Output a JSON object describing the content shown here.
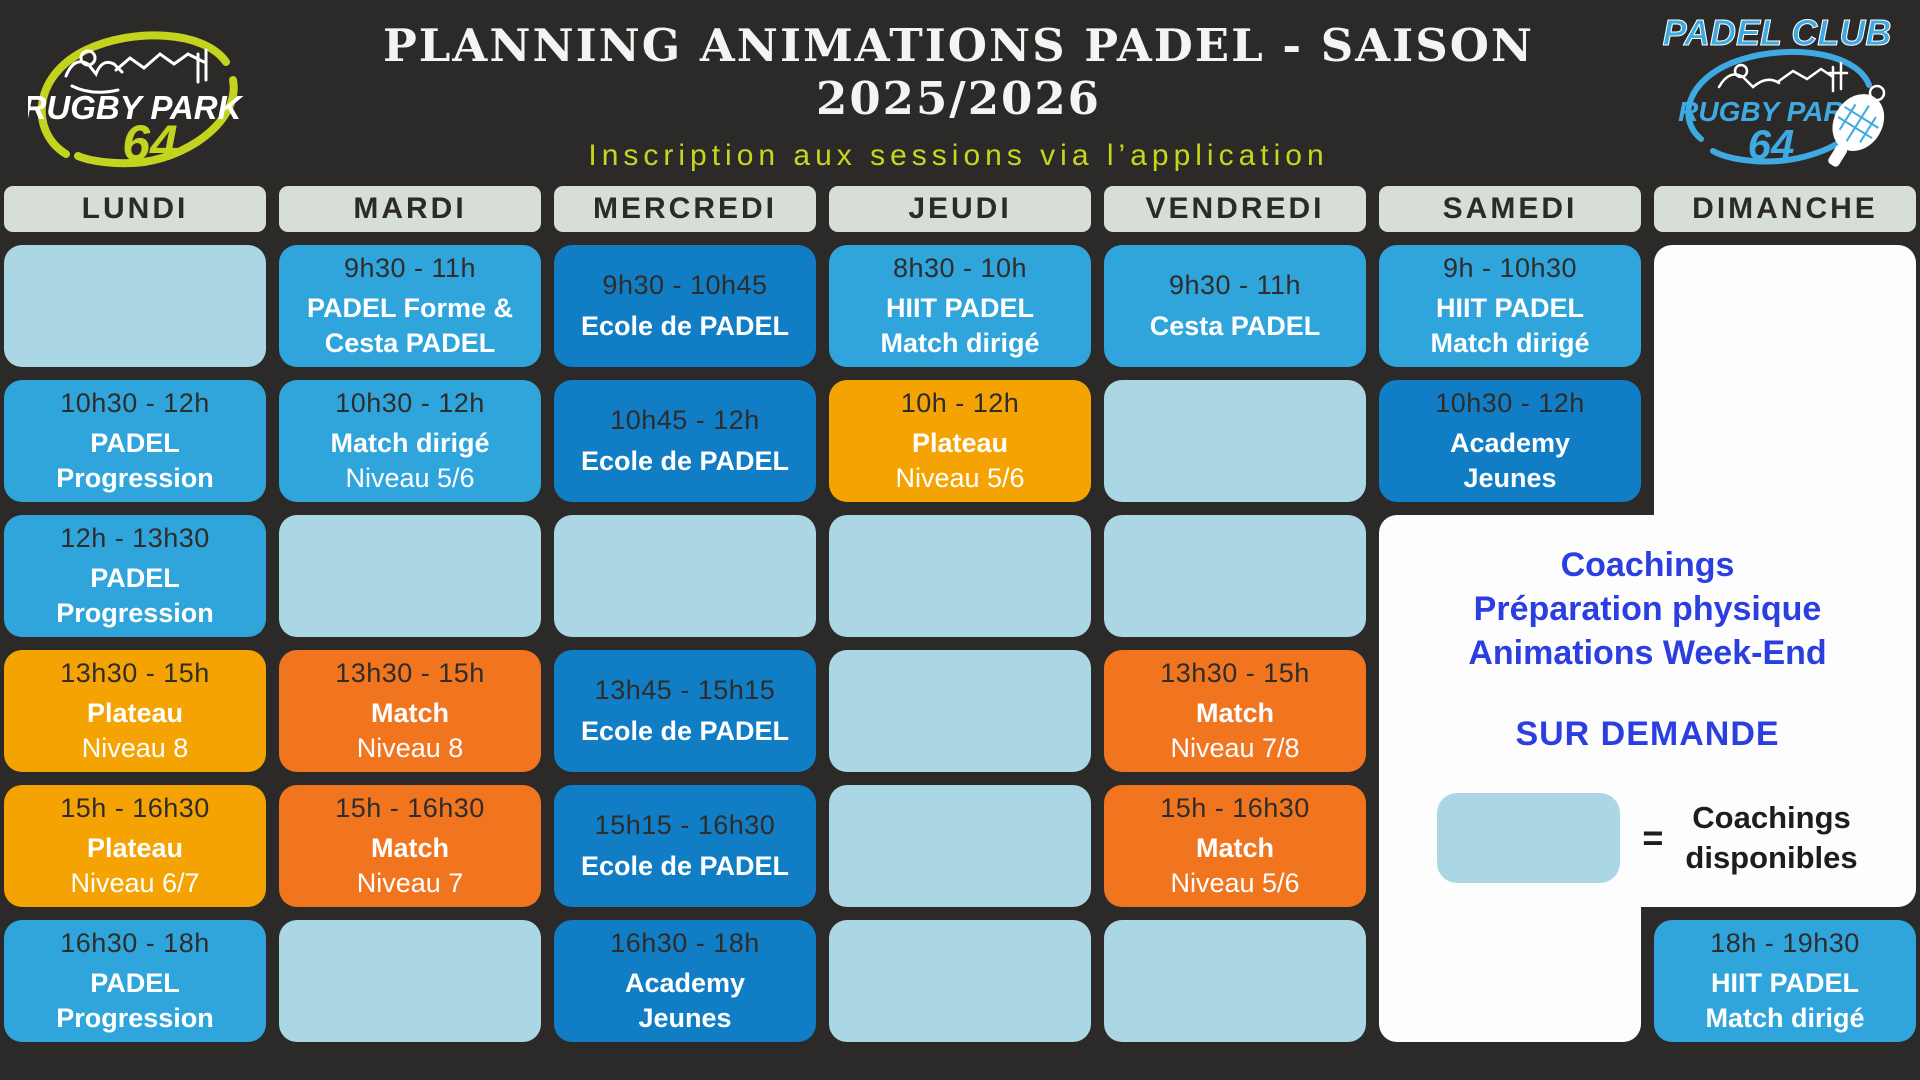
{
  "header": {
    "title": "PLANNING ANIMATIONS PADEL - SAISON 2025/2026",
    "subtitle": "Inscription aux sessions via l’application"
  },
  "logos": {
    "left": {
      "name": "RUGBY PARK",
      "number": "64"
    },
    "right": {
      "club": "PADEL CLUB",
      "name": "RUGBY PARK",
      "number": "64"
    }
  },
  "weekend_panel": {
    "line1": "Coachings",
    "line2": "Préparation physique",
    "line3": "Animations Week-End",
    "line4": "SUR DEMANDE"
  },
  "legend": {
    "equals": "=",
    "label_line1": "Coachings",
    "label_line2": "disponibles"
  },
  "colors": {
    "background": "#2b2a28",
    "day_header_bg": "#d7ded7",
    "coaching_blue": "#abd7e4",
    "session_blue": "#2fa5dc",
    "school_blue": "#107dc5",
    "plateau_orange": "#f5a302",
    "match_orange": "#f1741f",
    "panel_text_blue": "#2b3fe0",
    "accent_green": "#c9d41f",
    "logo_blue": "#3fa9e1"
  },
  "schedule": {
    "days": [
      {
        "label": "LUNDI",
        "slots": [
          {
            "type": "coaching"
          },
          {
            "type": "session",
            "time": "10h30 - 12h",
            "lines": [
              {
                "text": "PADEL",
                "bold": true
              },
              {
                "text": "Progression",
                "bold": true
              }
            ]
          },
          {
            "type": "session",
            "time": "12h - 13h30",
            "lines": [
              {
                "text": "PADEL",
                "bold": true
              },
              {
                "text": "Progression",
                "bold": true
              }
            ]
          },
          {
            "type": "plateau",
            "time": "13h30 - 15h",
            "lines": [
              {
                "text": "Plateau",
                "bold": true
              },
              {
                "text": "Niveau 8",
                "bold": false
              }
            ]
          },
          {
            "type": "plateau",
            "time": "15h - 16h30",
            "lines": [
              {
                "text": "Plateau",
                "bold": true
              },
              {
                "text": "Niveau 6/7",
                "bold": false
              }
            ]
          },
          {
            "type": "session",
            "time": "16h30 - 18h",
            "lines": [
              {
                "text": "PADEL",
                "bold": true
              },
              {
                "text": "Progression",
                "bold": true
              }
            ]
          }
        ]
      },
      {
        "label": "MARDI",
        "slots": [
          {
            "type": "session",
            "time": "9h30 - 11h",
            "lines": [
              {
                "text": "PADEL Forme &",
                "bold": true
              },
              {
                "text": "Cesta PADEL",
                "bold": true
              }
            ]
          },
          {
            "type": "session",
            "time": "10h30 - 12h",
            "lines": [
              {
                "text": "Match dirigé",
                "bold": true
              },
              {
                "text": "Niveau 5/6",
                "bold": false
              }
            ]
          },
          {
            "type": "coaching"
          },
          {
            "type": "match",
            "time": "13h30 - 15h",
            "lines": [
              {
                "text": "Match",
                "bold": true
              },
              {
                "text": "Niveau 8",
                "bold": false
              }
            ]
          },
          {
            "type": "match",
            "time": "15h - 16h30",
            "lines": [
              {
                "text": "Match",
                "bold": true
              },
              {
                "text": "Niveau 7",
                "bold": false
              }
            ]
          },
          {
            "type": "coaching"
          }
        ]
      },
      {
        "label": "MERCREDI",
        "slots": [
          {
            "type": "school",
            "time": "9h30 - 10h45",
            "lines": [
              {
                "text": "Ecole de PADEL",
                "bold": true
              }
            ]
          },
          {
            "type": "school",
            "time": "10h45 - 12h",
            "lines": [
              {
                "text": "Ecole de PADEL",
                "bold": true
              }
            ]
          },
          {
            "type": "coaching"
          },
          {
            "type": "school",
            "time": "13h45 - 15h15",
            "lines": [
              {
                "text": "Ecole de PADEL",
                "bold": true
              }
            ]
          },
          {
            "type": "school",
            "time": "15h15 - 16h30",
            "lines": [
              {
                "text": "Ecole de PADEL",
                "bold": true
              }
            ]
          },
          {
            "type": "school",
            "time": "16h30 - 18h",
            "lines": [
              {
                "text": "Academy",
                "bold": true
              },
              {
                "text": "Jeunes",
                "bold": true
              }
            ]
          }
        ]
      },
      {
        "label": "JEUDI",
        "slots": [
          {
            "type": "session",
            "time": "8h30 - 10h",
            "lines": [
              {
                "text": "HIIT PADEL",
                "bold": true
              },
              {
                "text": "Match dirigé",
                "bold": true
              }
            ]
          },
          {
            "type": "plateau",
            "time": "10h - 12h",
            "lines": [
              {
                "text": "Plateau",
                "bold": true
              },
              {
                "text": "Niveau 5/6",
                "bold": false
              }
            ]
          },
          {
            "type": "coaching"
          },
          {
            "type": "coaching"
          },
          {
            "type": "coaching"
          },
          {
            "type": "coaching"
          }
        ]
      },
      {
        "label": "VENDREDI",
        "slots": [
          {
            "type": "session",
            "time": "9h30 - 11h",
            "lines": [
              {
                "text": "Cesta PADEL",
                "bold": true
              }
            ]
          },
          {
            "type": "coaching"
          },
          {
            "type": "coaching"
          },
          {
            "type": "match",
            "time": "13h30 - 15h",
            "lines": [
              {
                "text": "Match",
                "bold": true
              },
              {
                "text": "Niveau 7/8",
                "bold": false
              }
            ]
          },
          {
            "type": "match",
            "time": "15h - 16h30",
            "lines": [
              {
                "text": "Match",
                "bold": true
              },
              {
                "text": "Niveau 5/6",
                "bold": false
              }
            ]
          },
          {
            "type": "coaching"
          }
        ]
      },
      {
        "label": "SAMEDI",
        "slots": [
          {
            "type": "session",
            "time": "9h - 10h30",
            "lines": [
              {
                "text": "HIIT PADEL",
                "bold": true
              },
              {
                "text": "Match dirigé",
                "bold": true
              }
            ]
          },
          {
            "type": "school",
            "time": "10h30 - 12h",
            "lines": [
              {
                "text": "Academy",
                "bold": true
              },
              {
                "text": "Jeunes",
                "bold": true
              }
            ]
          },
          {
            "type": "none"
          },
          {
            "type": "none"
          },
          {
            "type": "none"
          },
          {
            "type": "none"
          }
        ]
      },
      {
        "label": "DIMANCHE",
        "slots": [
          {
            "type": "none"
          },
          {
            "type": "none"
          },
          {
            "type": "none"
          },
          {
            "type": "none"
          },
          {
            "type": "none"
          },
          {
            "type": "session",
            "time": "18h - 19h30",
            "lines": [
              {
                "text": "HIIT PADEL",
                "bold": true
              },
              {
                "text": "Match dirigé",
                "bold": true
              }
            ]
          }
        ]
      }
    ]
  }
}
